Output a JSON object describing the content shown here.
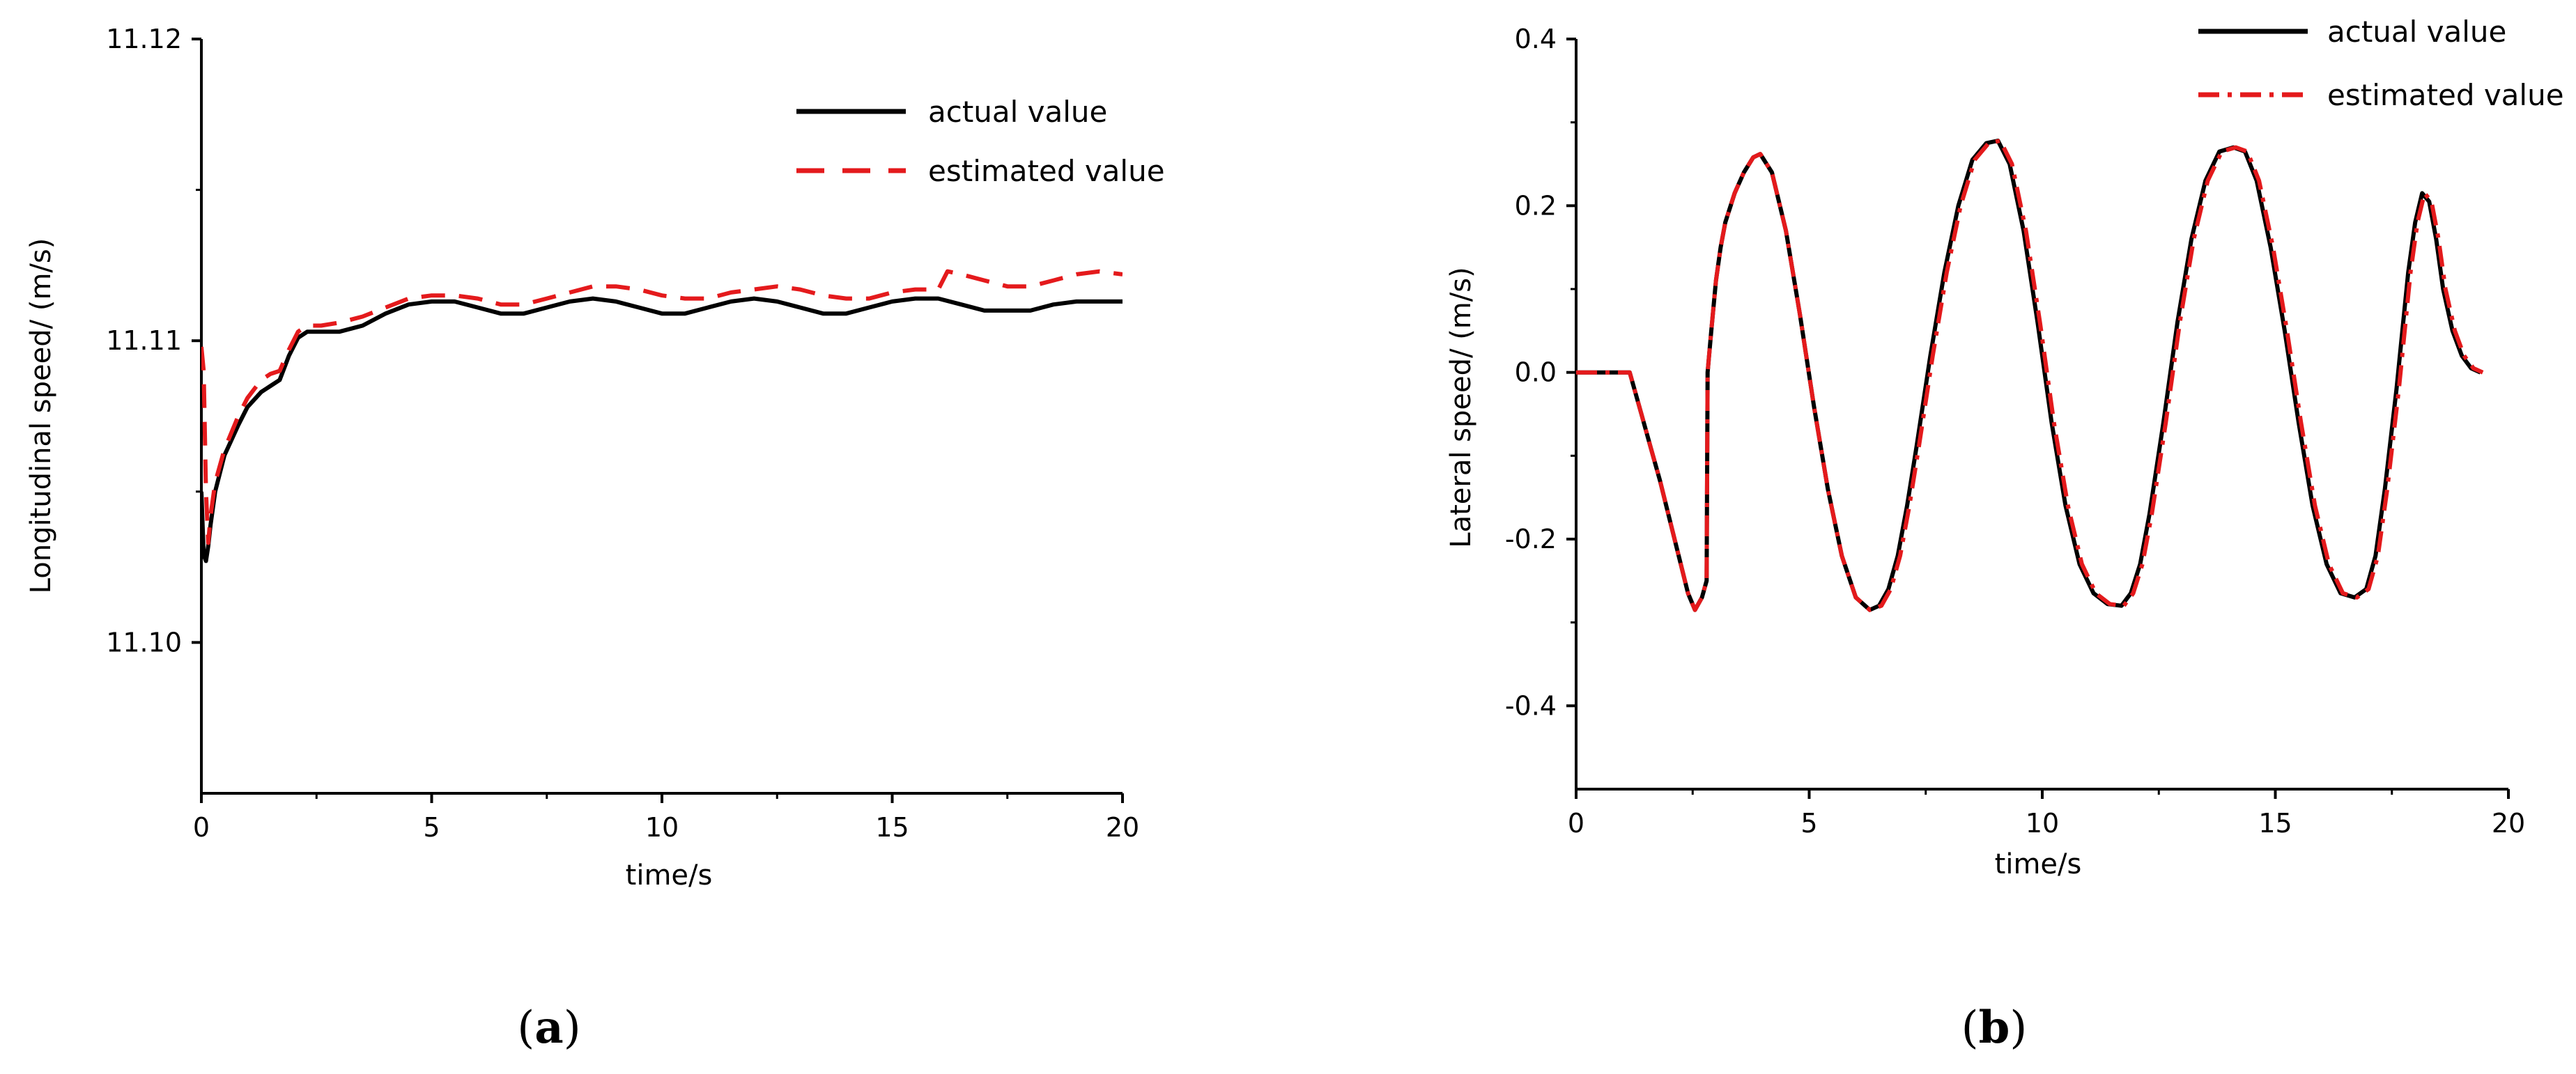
{
  "chart_data": [
    {
      "type": "line",
      "panel_label": "a",
      "xlabel": "time/s",
      "ylabel": "Longitudinal speed/  (m/s)",
      "xlim": [
        0,
        20
      ],
      "ylim": [
        11.095,
        11.12
      ],
      "xticks": [
        "0",
        "5",
        "10",
        "15",
        "20"
      ],
      "yticks": [
        "11.10",
        "11.11",
        "11.12"
      ],
      "grid": false,
      "legend_position": "top-right",
      "series": [
        {
          "name": "actual value",
          "color": "#000000",
          "style": "solid",
          "x": [
            0,
            0.05,
            0.1,
            0.15,
            0.2,
            0.3,
            0.5,
            0.8,
            1.0,
            1.3,
            1.5,
            1.7,
            1.9,
            2.1,
            2.3,
            2.6,
            3.0,
            3.5,
            4.0,
            4.5,
            5.0,
            5.5,
            6.0,
            6.5,
            7.0,
            7.5,
            8.0,
            8.5,
            9.0,
            9.5,
            10.0,
            10.5,
            11.0,
            11.5,
            12.0,
            12.5,
            13.0,
            13.5,
            14.0,
            14.5,
            15.0,
            15.5,
            16.0,
            16.5,
            17.0,
            17.5,
            18.0,
            18.5,
            19.0,
            19.5,
            20.0
          ],
          "y": [
            11.105,
            11.1029,
            11.1027,
            11.1032,
            11.1039,
            11.105,
            11.1062,
            11.1072,
            11.1078,
            11.1083,
            11.1085,
            11.1087,
            11.1095,
            11.1101,
            11.1103,
            11.1103,
            11.1103,
            11.1105,
            11.1109,
            11.1112,
            11.1113,
            11.1113,
            11.1111,
            11.1109,
            11.1109,
            11.1111,
            11.1113,
            11.1114,
            11.1113,
            11.1111,
            11.1109,
            11.1109,
            11.1111,
            11.1113,
            11.1114,
            11.1113,
            11.1111,
            11.1109,
            11.1109,
            11.1111,
            11.1113,
            11.1114,
            11.1114,
            11.1112,
            11.111,
            11.111,
            11.111,
            11.1112,
            11.1113,
            11.1113,
            11.1113
          ]
        },
        {
          "name": "estimated value",
          "color": "#e41a1c",
          "style": "dashed",
          "x": [
            0,
            0.05,
            0.1,
            0.15,
            0.2,
            0.3,
            0.5,
            0.8,
            1.0,
            1.3,
            1.5,
            1.7,
            1.9,
            2.1,
            2.3,
            2.6,
            3.0,
            3.5,
            4.0,
            4.5,
            5.0,
            5.5,
            6.0,
            6.5,
            7.0,
            7.5,
            8.0,
            8.5,
            9.0,
            9.5,
            10.0,
            10.5,
            11.0,
            11.5,
            12.0,
            12.5,
            13.0,
            13.5,
            14.0,
            14.5,
            15.0,
            15.5,
            16.0,
            16.2,
            16.5,
            17.0,
            17.5,
            18.0,
            18.5,
            19.0,
            19.5,
            20.0
          ],
          "y": [
            11.1098,
            11.109,
            11.105,
            11.1033,
            11.1042,
            11.1053,
            11.1064,
            11.1075,
            11.1081,
            11.1087,
            11.1089,
            11.109,
            11.1097,
            11.1103,
            11.1105,
            11.1105,
            11.1106,
            11.1108,
            11.1111,
            11.1114,
            11.1115,
            11.1115,
            11.1114,
            11.1112,
            11.1112,
            11.1114,
            11.1116,
            11.1118,
            11.1118,
            11.1117,
            11.1115,
            11.1114,
            11.1114,
            11.1116,
            11.1117,
            11.1118,
            11.1117,
            11.1115,
            11.1114,
            11.1114,
            11.1116,
            11.1117,
            11.1117,
            11.1123,
            11.1122,
            11.112,
            11.1118,
            11.1118,
            11.112,
            11.1122,
            11.1123,
            11.1122
          ]
        }
      ]
    },
    {
      "type": "line",
      "panel_label": "b",
      "xlabel": "time/s",
      "ylabel": "Lateral speed/  (m/s)",
      "xlim": [
        0,
        20
      ],
      "ylim": [
        -0.5,
        0.4
      ],
      "xticks": [
        "0",
        "5",
        "10",
        "15",
        "20"
      ],
      "yticks": [
        "-0.4",
        "-0.2",
        "0.0",
        "0.2",
        "0.4"
      ],
      "grid": false,
      "legend_position": "top-right",
      "series": [
        {
          "name": "actual value",
          "color": "#000000",
          "style": "solid",
          "x": [
            0,
            1.15,
            1.4,
            1.6,
            1.8,
            2.0,
            2.2,
            2.4,
            2.55,
            2.7,
            2.8,
            2.82,
            2.9,
            3.0,
            3.1,
            3.2,
            3.4,
            3.6,
            3.8,
            3.95,
            4.2,
            4.5,
            4.8,
            5.1,
            5.4,
            5.7,
            6.0,
            6.3,
            6.5,
            6.7,
            6.9,
            7.1,
            7.3,
            7.6,
            7.9,
            8.2,
            8.5,
            8.8,
            9.05,
            9.3,
            9.6,
            9.9,
            10.2,
            10.5,
            10.8,
            11.1,
            11.4,
            11.7,
            11.9,
            12.1,
            12.3,
            12.6,
            12.9,
            13.2,
            13.5,
            13.8,
            14.1,
            14.35,
            14.6,
            14.9,
            15.2,
            15.5,
            15.8,
            16.1,
            16.4,
            16.7,
            16.95,
            17.15,
            17.35,
            17.6,
            17.85,
            18.0,
            18.15,
            18.3,
            18.45,
            18.6,
            18.8,
            19.0,
            19.2,
            19.4
          ],
          "y": [
            0.0,
            0.0,
            -0.05,
            -0.09,
            -0.13,
            -0.175,
            -0.22,
            -0.265,
            -0.285,
            -0.27,
            -0.25,
            0.0,
            0.05,
            0.11,
            0.15,
            0.18,
            0.215,
            0.24,
            0.258,
            0.262,
            0.24,
            0.17,
            0.07,
            -0.04,
            -0.14,
            -0.22,
            -0.27,
            -0.285,
            -0.28,
            -0.26,
            -0.22,
            -0.16,
            -0.09,
            0.02,
            0.12,
            0.2,
            0.255,
            0.275,
            0.278,
            0.25,
            0.17,
            0.06,
            -0.06,
            -0.16,
            -0.23,
            -0.265,
            -0.278,
            -0.28,
            -0.265,
            -0.23,
            -0.17,
            -0.06,
            0.06,
            0.16,
            0.23,
            0.265,
            0.27,
            0.265,
            0.23,
            0.15,
            0.05,
            -0.06,
            -0.16,
            -0.23,
            -0.265,
            -0.27,
            -0.26,
            -0.22,
            -0.14,
            -0.02,
            0.12,
            0.18,
            0.215,
            0.205,
            0.16,
            0.1,
            0.05,
            0.02,
            0.005,
            0.0
          ]
        },
        {
          "name": "estimated value",
          "color": "#e41a1c",
          "style": "dashdot",
          "x": [
            0,
            1.15,
            1.4,
            1.6,
            1.8,
            2.0,
            2.2,
            2.4,
            2.55,
            2.7,
            2.8,
            2.82,
            2.9,
            3.0,
            3.1,
            3.2,
            3.4,
            3.6,
            3.8,
            3.95,
            4.2,
            4.5,
            4.8,
            5.1,
            5.4,
            5.7,
            6.0,
            6.3,
            6.55,
            6.75,
            6.95,
            7.15,
            7.35,
            7.65,
            7.95,
            8.25,
            8.55,
            8.85,
            9.1,
            9.35,
            9.65,
            9.95,
            10.25,
            10.55,
            10.85,
            11.15,
            11.45,
            11.75,
            11.95,
            12.15,
            12.35,
            12.65,
            12.95,
            13.25,
            13.55,
            13.85,
            14.15,
            14.4,
            14.65,
            14.95,
            15.25,
            15.55,
            15.85,
            16.15,
            16.45,
            16.75,
            17.0,
            17.2,
            17.4,
            17.65,
            17.9,
            18.05,
            18.2,
            18.35,
            18.5,
            18.65,
            18.85,
            19.05,
            19.25,
            19.45
          ],
          "y": [
            0.0,
            0.0,
            -0.05,
            -0.09,
            -0.13,
            -0.175,
            -0.22,
            -0.265,
            -0.285,
            -0.27,
            -0.25,
            0.0,
            0.05,
            0.11,
            0.15,
            0.18,
            0.215,
            0.24,
            0.258,
            0.262,
            0.24,
            0.17,
            0.07,
            -0.04,
            -0.14,
            -0.22,
            -0.27,
            -0.285,
            -0.28,
            -0.26,
            -0.22,
            -0.16,
            -0.09,
            0.02,
            0.12,
            0.2,
            0.255,
            0.275,
            0.278,
            0.25,
            0.17,
            0.06,
            -0.06,
            -0.16,
            -0.23,
            -0.265,
            -0.278,
            -0.28,
            -0.265,
            -0.23,
            -0.17,
            -0.06,
            0.06,
            0.16,
            0.23,
            0.265,
            0.27,
            0.265,
            0.23,
            0.15,
            0.05,
            -0.06,
            -0.16,
            -0.23,
            -0.265,
            -0.27,
            -0.26,
            -0.22,
            -0.14,
            -0.02,
            0.12,
            0.18,
            0.215,
            0.205,
            0.16,
            0.1,
            0.05,
            0.02,
            0.005,
            0.0
          ]
        }
      ]
    }
  ]
}
